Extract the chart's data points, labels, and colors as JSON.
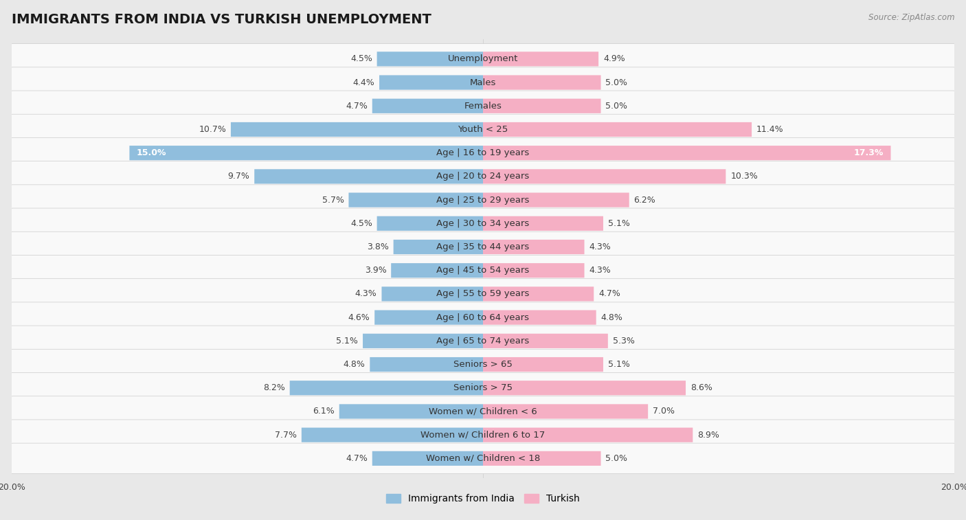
{
  "title": "IMMIGRANTS FROM INDIA VS TURKISH UNEMPLOYMENT",
  "source": "Source: ZipAtlas.com",
  "categories": [
    "Unemployment",
    "Males",
    "Females",
    "Youth < 25",
    "Age | 16 to 19 years",
    "Age | 20 to 24 years",
    "Age | 25 to 29 years",
    "Age | 30 to 34 years",
    "Age | 35 to 44 years",
    "Age | 45 to 54 years",
    "Age | 55 to 59 years",
    "Age | 60 to 64 years",
    "Age | 65 to 74 years",
    "Seniors > 65",
    "Seniors > 75",
    "Women w/ Children < 6",
    "Women w/ Children 6 to 17",
    "Women w/ Children < 18"
  ],
  "india_values": [
    4.5,
    4.4,
    4.7,
    10.7,
    15.0,
    9.7,
    5.7,
    4.5,
    3.8,
    3.9,
    4.3,
    4.6,
    5.1,
    4.8,
    8.2,
    6.1,
    7.7,
    4.7
  ],
  "turkish_values": [
    4.9,
    5.0,
    5.0,
    11.4,
    17.3,
    10.3,
    6.2,
    5.1,
    4.3,
    4.3,
    4.7,
    4.8,
    5.3,
    5.1,
    8.6,
    7.0,
    8.9,
    5.0
  ],
  "india_color": "#90bedd",
  "turkish_color": "#f5afc4",
  "india_color_highlight": "#6aa5cc",
  "turkish_color_highlight": "#ef6e93",
  "bg_color": "#e8e8e8",
  "row_bg_color": "#f5f5f5",
  "row_alt_color": "#ebebeb",
  "xlim": 20.0,
  "bar_height": 0.62,
  "title_fontsize": 14,
  "label_fontsize": 9.5,
  "value_fontsize": 9,
  "legend_fontsize": 10,
  "inside_label_threshold": 12.0
}
